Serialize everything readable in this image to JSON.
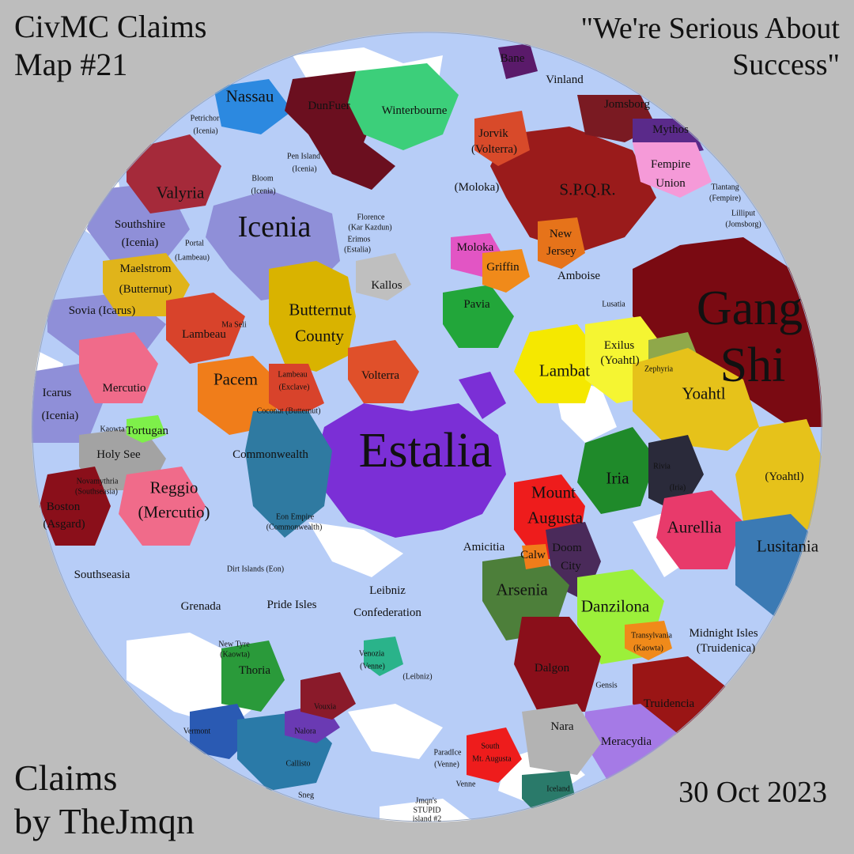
{
  "title": {
    "line1": "CivMC Claims",
    "line2": "Map #21"
  },
  "motto": {
    "line1": "\"We're Serious About",
    "line2": "Success\""
  },
  "credit": {
    "line1": "Claims",
    "line2": "by TheJmqn"
  },
  "date": "30 Oct 2023",
  "colors": {
    "ocean": "#b7cdf7",
    "background": "#bdbdbd",
    "snow": "#ffffff"
  },
  "nations": [
    {
      "key": "estalia",
      "name": "Estalia",
      "color": "#7b2fd6",
      "size": "xl"
    },
    {
      "key": "icenia",
      "name": "Icenia",
      "color": "#8f8fd8",
      "size": "lg"
    },
    {
      "key": "gang_shi_1",
      "name": "Gang",
      "color": "#7a0a12",
      "size": "xl"
    },
    {
      "key": "gang_shi_2",
      "name": "Shi",
      "color": "#7a0a12",
      "size": "xl"
    },
    {
      "key": "spqr",
      "name": "S.P.Q.R.",
      "color": "#9a1b1b",
      "size": "md"
    },
    {
      "key": "yoahtl",
      "name": "Yoahtl",
      "color": "#e6c21a",
      "size": "md"
    },
    {
      "key": "butternut_1",
      "name": "Butternut",
      "color": "#d9b300",
      "size": "md"
    },
    {
      "key": "butternut_2",
      "name": "County",
      "color": "#d9b300",
      "size": "md"
    },
    {
      "key": "pacem",
      "name": "Pacem",
      "color": "#f07d1a",
      "size": "md"
    },
    {
      "key": "lambat",
      "name": "Lambat",
      "color": "#f5e800",
      "size": "md"
    },
    {
      "key": "iria",
      "name": "Iria",
      "color": "#1f8a2a",
      "size": "md"
    },
    {
      "key": "aurellia",
      "name": "Aurellia",
      "color": "#e83a6b",
      "size": "md"
    },
    {
      "key": "lusitania",
      "name": "Lusitania",
      "color": "#3b7ab4",
      "size": "md"
    },
    {
      "key": "danzilona",
      "name": "Danzilona",
      "color": "#9cf03a",
      "size": "md"
    },
    {
      "key": "arsenia",
      "name": "Arsenia",
      "color": "#4d7f3a",
      "size": "md"
    },
    {
      "key": "mount_augusta_1",
      "name": "Mount",
      "color": "#ee1c1c",
      "size": "md"
    },
    {
      "key": "mount_augusta_2",
      "name": "Augusta",
      "color": "#ee1c1c",
      "size": "md"
    },
    {
      "key": "valyria",
      "name": "Valyria",
      "color": "#a52a3a",
      "size": "md"
    },
    {
      "key": "winterbourne",
      "name": "Winterbourne",
      "color": "#3ccf7a",
      "size": "sm"
    },
    {
      "key": "nassau",
      "name": "Nassau",
      "color": "#2c89e0",
      "size": "md"
    },
    {
      "key": "dunfuer",
      "name": "DunFuer",
      "color": "#6b0f1f",
      "size": "sm"
    },
    {
      "key": "reggio_1",
      "name": "Reggio",
      "color": "#f06b8a",
      "size": "md"
    },
    {
      "key": "reggio_2",
      "name": "(Mercutio)",
      "color": "#f06b8a",
      "size": "md"
    },
    {
      "key": "mercutio",
      "name": "Mercutio",
      "color": "#f06b8a",
      "size": "sm"
    },
    {
      "key": "commonwealth",
      "name": "Commonwealth",
      "color": "#2f7aa1",
      "size": "sm"
    },
    {
      "key": "volterra",
      "name": "Volterra",
      "color": "#e0502a",
      "size": "sm"
    },
    {
      "key": "lambeau",
      "name": "Lambeau",
      "color": "#d8432b",
      "size": "sm"
    },
    {
      "key": "holy_see",
      "name": "Holy See",
      "color": "#a3a3a3",
      "size": "sm"
    },
    {
      "key": "meracydia",
      "name": "Meracydia",
      "color": "#a57ae6",
      "size": "sm"
    },
    {
      "key": "truidencia",
      "name": "Truidencia",
      "color": "#9a1515",
      "size": "sm"
    },
    {
      "key": "nara",
      "name": "Nara",
      "color": "#b3b3b3",
      "size": "sm"
    },
    {
      "key": "thoria",
      "name": "Thoria",
      "color": "#2a9a3a",
      "size": "sm"
    },
    {
      "key": "fempire_1",
      "name": "Fempire",
      "color": "#f59ad8",
      "size": "sm"
    },
    {
      "key": "fempire_2",
      "name": "Union",
      "color": "#f59ad8",
      "size": "sm"
    },
    {
      "key": "pavia",
      "name": "Pavia",
      "color": "#22a63a",
      "size": "sm"
    },
    {
      "key": "moloka",
      "name": "Moloka",
      "color": "#e255c4",
      "size": "sm"
    },
    {
      "key": "griffin",
      "name": "Griffin",
      "color": "#f08a1a",
      "size": "sm"
    },
    {
      "key": "new_jersey_1",
      "name": "New",
      "color": "#e6731a",
      "size": "sm"
    },
    {
      "key": "new_jersey_2",
      "name": "Jersey",
      "color": "#e6731a",
      "size": "sm"
    },
    {
      "key": "maelstrom_1",
      "name": "Maelstrom",
      "color": "#e0b41a",
      "size": "sm"
    },
    {
      "key": "maelstrom_2",
      "name": "(Butternut)",
      "color": "#e0b41a",
      "size": "sm"
    },
    {
      "key": "exilus_1",
      "name": "Exilus",
      "color": "#f5f532",
      "size": "sm"
    },
    {
      "key": "exilus_2",
      "name": "(Yoahtl)",
      "color": "#f5f532",
      "size": "sm"
    },
    {
      "key": "yoahtl_2",
      "name": "(Yoahtl)",
      "color": "#e6c21a",
      "size": "sm"
    },
    {
      "key": "kallos",
      "name": "Kallos",
      "color": "#bfbfbf",
      "size": "sm"
    },
    {
      "key": "amboise",
      "name": "Amboise",
      "color": "#b7cdf7",
      "size": "sm"
    },
    {
      "key": "amicitia",
      "name": "Amicitia",
      "color": "#b7cdf7",
      "size": "sm"
    },
    {
      "key": "leibniz_1",
      "name": "Leibniz",
      "color": "#b7cdf7",
      "size": "sm"
    },
    {
      "key": "leibniz_2",
      "name": "Confederation",
      "color": "#b7cdf7",
      "size": "sm"
    },
    {
      "key": "grenada",
      "name": "Grenada",
      "color": "#b7cdf7",
      "size": "sm"
    },
    {
      "key": "pride_isles",
      "name": "Pride Isles",
      "color": "#b7cdf7",
      "size": "sm"
    },
    {
      "key": "southseasia",
      "name": "Southseasia",
      "color": "#b7cdf7",
      "size": "sm"
    },
    {
      "key": "sovia",
      "name": "Sovia (Icarus)",
      "color": "#b7cdf7",
      "size": "sm"
    },
    {
      "key": "icarus_1",
      "name": "Icarus",
      "color": "#8f8fd8",
      "size": "sm"
    },
    {
      "key": "icarus_2",
      "name": "(Icenia)",
      "color": "#8f8fd8",
      "size": "sm"
    },
    {
      "key": "southshire_1",
      "name": "Southshire",
      "color": "#8f8fd8",
      "size": "sm"
    },
    {
      "key": "southshire_2",
      "name": "(Icenia)",
      "color": "#8f8fd8",
      "size": "sm"
    },
    {
      "key": "tortugan",
      "name": "Tortugan",
      "color": "#7ef04a",
      "size": "sm"
    },
    {
      "key": "jorvik_1",
      "name": "Jorvik",
      "color": "#d84a2a",
      "size": "sm"
    },
    {
      "key": "jorvik_2",
      "name": "(Volterra)",
      "color": "#d84a2a",
      "size": "sm"
    },
    {
      "key": "vinland",
      "name": "Vinland",
      "color": "#9a1b1b",
      "size": "sm"
    },
    {
      "key": "jomsborg",
      "name": "Jomsborg",
      "color": "#7a1a22",
      "size": "sm"
    },
    {
      "key": "mythos",
      "name": "Mythos",
      "color": "#5a2a8a",
      "size": "sm"
    },
    {
      "key": "bane",
      "name": "Bane",
      "color": "#5a1a6a",
      "size": "sm"
    },
    {
      "key": "moloka_2",
      "name": "(Moloka)",
      "color": "#e255c4",
      "size": "sm"
    },
    {
      "key": "dalgon",
      "name": "Dalgon",
      "color": "#8a0f1a",
      "size": "sm"
    },
    {
      "key": "midnight_isles_1",
      "name": "Midnight Isles",
      "color": "#b7cdf7",
      "size": "sm"
    },
    {
      "key": "midnight_isles_2",
      "name": "(Truidenica)",
      "color": "#b7cdf7",
      "size": "sm"
    },
    {
      "key": "calw",
      "name": "Calw",
      "color": "#f07d1a",
      "size": "sm"
    },
    {
      "key": "doom_city_1",
      "name": "Doom",
      "color": "#4a2a5a",
      "size": "sm"
    },
    {
      "key": "doom_city_2",
      "name": "City",
      "color": "#4a2a5a",
      "size": "sm"
    },
    {
      "key": "zephyria",
      "name": "Zephyria",
      "color": "#8fa84a",
      "size": "xs"
    },
    {
      "key": "lusatia",
      "name": "Lusatia",
      "color": "#c9c9c9",
      "size": "xs"
    },
    {
      "key": "venozia_1",
      "name": "Venozia",
      "color": "#2ab38a",
      "size": "xs"
    },
    {
      "key": "venozia_2",
      "name": "(Venne)",
      "color": "#2ab38a",
      "size": "xs"
    },
    {
      "key": "leibniz_3",
      "name": "(Leibniz)",
      "color": "#b7cdf7",
      "size": "xs"
    },
    {
      "key": "nalora",
      "name": "Nalora",
      "color": "#6a3ab3",
      "size": "xs"
    },
    {
      "key": "vermont",
      "name": "Vermont",
      "color": "#2a5ab3",
      "size": "xs"
    },
    {
      "key": "callisto",
      "name": "Callisto",
      "color": "#2a7aa8",
      "size": "xs"
    },
    {
      "key": "sneg",
      "name": "Sneg",
      "color": "#d8c84a",
      "size": "xs"
    },
    {
      "key": "venne",
      "name": "Venne",
      "color": "#2ab38a",
      "size": "xs"
    },
    {
      "key": "paradice_1",
      "name": "ParadIce",
      "color": "#e6e6e6",
      "size": "xs"
    },
    {
      "key": "paradice_2",
      "name": "(Venne)",
      "color": "#e6e6e6",
      "size": "xs"
    },
    {
      "key": "iceland",
      "name": "Iceland",
      "color": "#2a7a6a",
      "size": "xs"
    },
    {
      "key": "vouxia",
      "name": "Vouxia",
      "color": "#8a1a2a",
      "size": "xs"
    },
    {
      "key": "gensis",
      "name": "Gensis",
      "color": "#8a1a1a",
      "size": "xs"
    },
    {
      "key": "transylvania_1",
      "name": "Transylvania",
      "color": "#f08a1a",
      "size": "xs"
    },
    {
      "key": "transylvania_2",
      "name": "(Kaowta)",
      "color": "#f08a1a",
      "size": "xs"
    },
    {
      "key": "iria_2",
      "name": "(Iria)",
      "color": "#1f8a2a",
      "size": "xs"
    },
    {
      "key": "rivia",
      "name": "Rivia",
      "color": "#2a2a3a",
      "size": "xs"
    },
    {
      "key": "bloom_1",
      "name": "Bloom",
      "color": "#b7cdf7",
      "size": "xs"
    },
    {
      "key": "bloom_2",
      "name": "(Icenia)",
      "color": "#b7cdf7",
      "size": "xs"
    },
    {
      "key": "pen_island_1",
      "name": "Pen Island",
      "color": "#b7cdf7",
      "size": "xs"
    },
    {
      "key": "pen_island_2",
      "name": "(Icenia)",
      "color": "#b7cdf7",
      "size": "xs"
    },
    {
      "key": "petrichor_1",
      "name": "Petrichor",
      "color": "#b7cdf7",
      "size": "xs"
    },
    {
      "key": "petrichor_2",
      "name": "(Icenia)",
      "color": "#b7cdf7",
      "size": "xs"
    },
    {
      "key": "portal_1",
      "name": "Portal",
      "color": "#d8432b",
      "size": "xs"
    },
    {
      "key": "portal_2",
      "name": "(Lambeau)",
      "color": "#d8432b",
      "size": "xs"
    },
    {
      "key": "florence_1",
      "name": "Florence",
      "color": "#e0e04a",
      "size": "xs"
    },
    {
      "key": "florence_2",
      "name": "(Kar Kazdun)",
      "color": "#e0e04a",
      "size": "xs"
    },
    {
      "key": "erimos_1",
      "name": "Erimos",
      "color": "#8a3ad8",
      "size": "xs"
    },
    {
      "key": "erimos_2",
      "name": "(Estalia)",
      "color": "#8a3ad8",
      "size": "xs"
    },
    {
      "key": "lambeau_ex_1",
      "name": "Lambeau",
      "color": "#d8432b",
      "size": "xs"
    },
    {
      "key": "lambeau_ex_2",
      "name": "(Exclave)",
      "color": "#d8432b",
      "size": "xs"
    },
    {
      "key": "novamythria_1",
      "name": "Novamythria",
      "color": "#b7cdf7",
      "size": "xs"
    },
    {
      "key": "novamythria_2",
      "name": "(Southseasia)",
      "color": "#b7cdf7",
      "size": "xs"
    },
    {
      "key": "boston_1",
      "name": "Boston",
      "color": "#8a0f1a",
      "size": "sm"
    },
    {
      "key": "boston_2",
      "name": "(Asgard)",
      "color": "#8a0f1a",
      "size": "sm"
    },
    {
      "key": "dirt_islands",
      "name": "Dirt Islands (Eon)",
      "color": "#b7cdf7",
      "size": "xs"
    },
    {
      "key": "eon_empire_1",
      "name": "Eon Empire",
      "color": "#b7cdf7",
      "size": "xs"
    },
    {
      "key": "eon_empire_2",
      "name": "(Commonwealth)",
      "color": "#b7cdf7",
      "size": "xs"
    },
    {
      "key": "tiantang_1",
      "name": "Tiantang",
      "color": "#b7cdf7",
      "size": "xs"
    },
    {
      "key": "tiantang_2",
      "name": "(Fempire)",
      "color": "#b7cdf7",
      "size": "xs"
    },
    {
      "key": "lilliput_1",
      "name": "Lilliput",
      "color": "#b7cdf7",
      "size": "xs"
    },
    {
      "key": "lilliput_2",
      "name": "(Jomsborg)",
      "color": "#b7cdf7",
      "size": "xs"
    },
    {
      "key": "new_tyre_1",
      "name": "New Tyre",
      "color": "#f08a1a",
      "size": "xs"
    },
    {
      "key": "new_tyre_2",
      "name": "(Kaowta)",
      "color": "#f08a1a",
      "size": "xs"
    },
    {
      "key": "south_augusta_1",
      "name": "South",
      "color": "#ee1c1c",
      "size": "xs"
    },
    {
      "key": "south_augusta_2",
      "name": "Mt. Augusta",
      "color": "#ee1c1c",
      "size": "xs"
    },
    {
      "key": "jmqn_island_1",
      "name": "Jmqn's",
      "color": "#ffffff",
      "size": "xs"
    },
    {
      "key": "jmqn_island_2",
      "name": "STUPID",
      "color": "#ffffff",
      "size": "xs"
    },
    {
      "key": "jmqn_island_3",
      "name": "island #2",
      "color": "#ffffff",
      "size": "xs"
    },
    {
      "key": "ma_seli",
      "name": "Ma Seli",
      "color": "#3ad84a",
      "size": "xs"
    },
    {
      "key": "kaowta",
      "name": "Kaowta",
      "color": "#f08a1a",
      "size": "xs"
    },
    {
      "key": "coconut",
      "name": "Coconut (Butternut)",
      "color": "#d9b300",
      "size": "xs"
    }
  ]
}
